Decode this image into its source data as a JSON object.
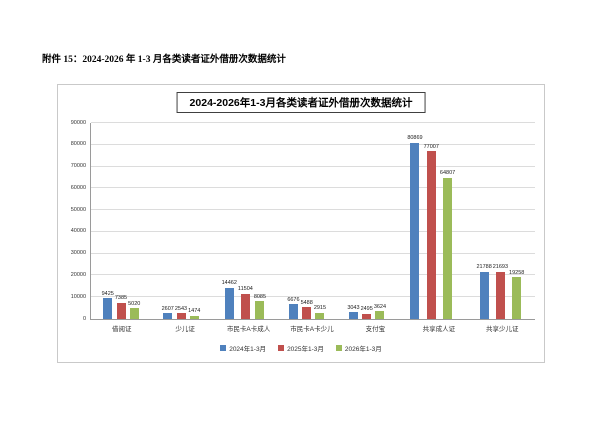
{
  "document": {
    "heading": "附件 15：2024-2026 年 1-3 月各类读者证外借册次数据统计"
  },
  "chart_data": {
    "type": "bar",
    "title": "2024-2026年1-3月各类读者证外借册次数据统计",
    "categories": [
      "借阅证",
      "少儿证",
      "市民卡A卡成人",
      "市民卡A卡少儿",
      "支付宝",
      "共享成人证",
      "共享少儿证"
    ],
    "series": [
      {
        "name": "2024年1-3月",
        "color": "#4F81BD",
        "values": [
          9425,
          2607,
          14462,
          6676,
          3043,
          80869,
          21788
        ]
      },
      {
        "name": "2025年1-3月",
        "color": "#C0504D",
        "values": [
          7385,
          2543,
          11504,
          5488,
          2495,
          77007,
          21693
        ]
      },
      {
        "name": "2026年1-3月",
        "color": "#9BBB59",
        "values": [
          5020,
          1474,
          8085,
          2915,
          3624,
          64807,
          19258
        ]
      }
    ],
    "ylim": [
      0,
      90000
    ],
    "ytick_step": 10000,
    "grid": true,
    "legend_position": "bottom",
    "xlabel": "",
    "ylabel": ""
  }
}
